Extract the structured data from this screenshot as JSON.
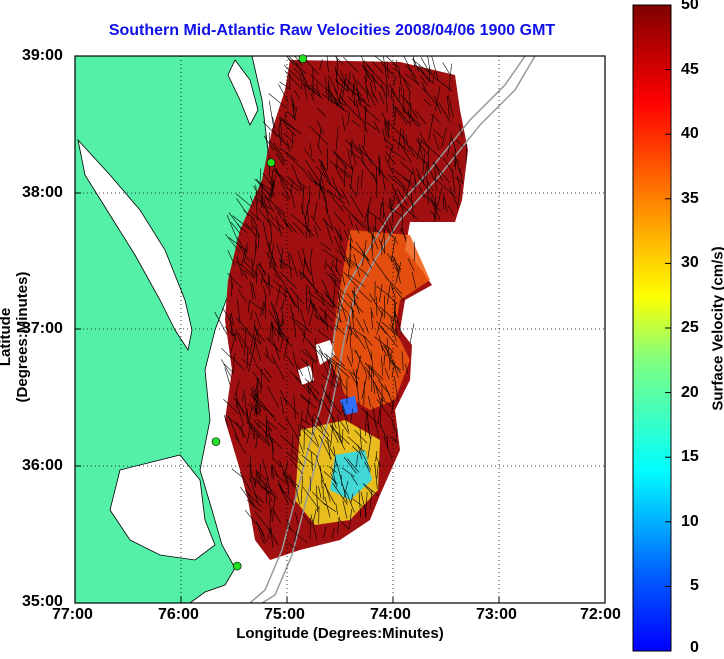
{
  "title": "Southern Mid-Atlantic Raw Velocities 2008/04/06 1900 GMT",
  "axes": {
    "xlabel": "Longitude (Degrees:Minutes)",
    "ylabel": "Latitude (Degrees:Minutes)",
    "x_ticks": [
      "77:00",
      "76:00",
      "75:00",
      "74:00",
      "73:00",
      "72:00"
    ],
    "y_ticks": [
      "39:00",
      "38:00",
      "37:00",
      "36:00",
      "35:00"
    ],
    "x_range": [
      -77,
      -72
    ],
    "y_range": [
      35,
      39
    ],
    "grid": true
  },
  "colorbar": {
    "label": "Surface Velocity (cm/s)",
    "ticks": [
      "0",
      "5",
      "10",
      "15",
      "20",
      "25",
      "30",
      "35",
      "40",
      "45",
      "50"
    ],
    "range": [
      0,
      50
    ],
    "colormap": "jet"
  },
  "colors": {
    "land": "#55f0a8",
    "title": "#1010e8",
    "station": "#22dd22",
    "bathymetry": "#999999"
  },
  "stations": [
    {
      "lon": -74.85,
      "lat": 38.98
    },
    {
      "lon": -75.15,
      "lat": 38.22
    },
    {
      "lon": -75.67,
      "lat": 36.18
    },
    {
      "lon": -75.47,
      "lat": 35.27
    }
  ]
}
